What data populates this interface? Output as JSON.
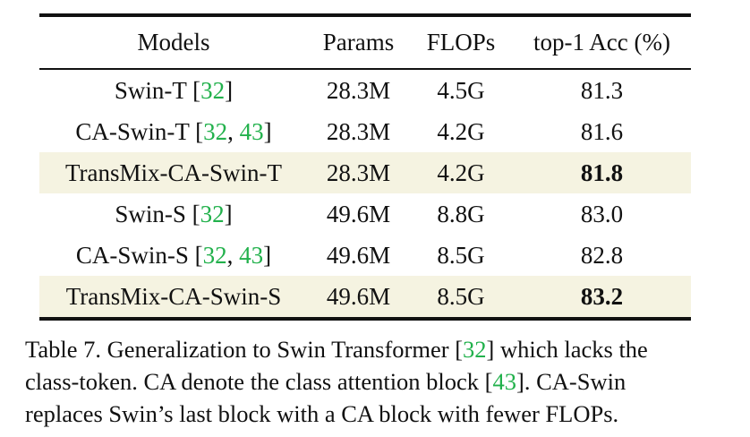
{
  "table": {
    "headers": [
      "Models",
      "Params",
      "FLOPs",
      "top-1 Acc (%)"
    ],
    "rows": [
      {
        "model": "Swin-T",
        "cite_open": " [",
        "cites": [
          "32"
        ],
        "cite_close": "]",
        "params": "28.3M",
        "flops": "4.5G",
        "acc": "81.3",
        "highlight": false,
        "bold": false
      },
      {
        "model": "CA-Swin-T",
        "cite_open": " [",
        "cites": [
          "32",
          "43"
        ],
        "cite_sep": ", ",
        "cite_close": "]",
        "params": "28.3M",
        "flops": "4.2G",
        "acc": "81.6",
        "highlight": false,
        "bold": false
      },
      {
        "model": "TransMix-CA-Swin-T",
        "params": "28.3M",
        "flops": "4.2G",
        "acc": "81.8",
        "highlight": true,
        "bold": true
      },
      {
        "model": "Swin-S",
        "cite_open": " [",
        "cites": [
          "32"
        ],
        "cite_close": "]",
        "params": "49.6M",
        "flops": "8.8G",
        "acc": "83.0",
        "highlight": false,
        "bold": false
      },
      {
        "model": "CA-Swin-S",
        "cite_open": " [",
        "cites": [
          "32",
          "43"
        ],
        "cite_sep": ", ",
        "cite_close": "]",
        "params": "49.6M",
        "flops": "8.5G",
        "acc": "82.8",
        "highlight": false,
        "bold": false
      },
      {
        "model": "TransMix-CA-Swin-S",
        "params": "49.6M",
        "flops": "8.5G",
        "acc": "83.2",
        "highlight": true,
        "bold": true
      }
    ]
  },
  "caption": {
    "line1_a": "Table 7. Generalization to Swin Transformer [",
    "line1_cite": "32",
    "line1_b": "] which lacks the",
    "line2_a": "class-token.  CA denote the class attention block [",
    "line2_cite": "43",
    "line2_b": "].  CA-Swin",
    "line3": "replaces Swin’s last block with a CA block with fewer FLOPs."
  },
  "colors": {
    "highlight_row": "#f5f3e1",
    "citation": "#22b14c",
    "text": "#111111"
  }
}
